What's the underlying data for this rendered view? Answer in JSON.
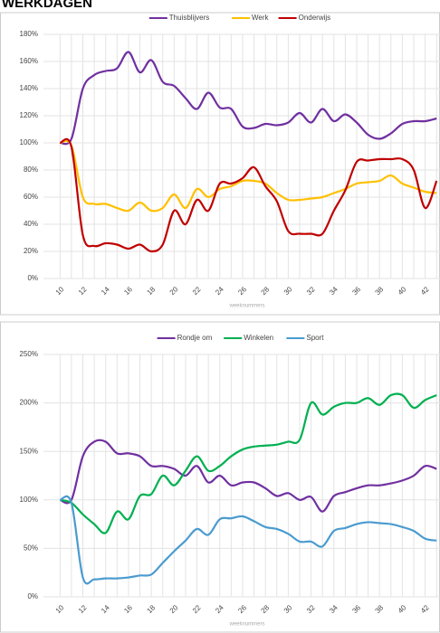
{
  "title": "WERKDAGEN",
  "chart_data": [
    {
      "type": "line",
      "x_label": "weeknummers",
      "x": [
        10,
        11,
        12,
        13,
        14,
        15,
        16,
        17,
        18,
        19,
        20,
        21,
        22,
        23,
        24,
        25,
        26,
        27,
        28,
        29,
        30,
        31,
        32,
        33,
        34,
        35,
        36,
        37,
        38,
        39,
        40,
        41,
        42,
        43
      ],
      "xlim": [
        9.5,
        43.3
      ],
      "xticks": [
        10,
        12,
        14,
        16,
        18,
        20,
        22,
        24,
        26,
        28,
        30,
        32,
        34,
        36,
        38,
        40,
        42
      ],
      "ylim": [
        0,
        180
      ],
      "yticks": [
        {
          "value": 0,
          "label": "0%"
        },
        {
          "value": 20,
          "label": "20%"
        },
        {
          "value": 40,
          "label": "40%"
        },
        {
          "value": 60,
          "label": "60%"
        },
        {
          "value": 80,
          "label": "80%"
        },
        {
          "value": 100,
          "label": "100%"
        },
        {
          "value": 120,
          "label": "120%"
        },
        {
          "value": 140,
          "label": "140%"
        },
        {
          "value": 160,
          "label": "160%"
        },
        {
          "value": 180,
          "label": "180%"
        }
      ],
      "grid": true,
      "legend": "top",
      "series": [
        {
          "name": "Thuisblijvers",
          "color": "#7030a0",
          "values": [
            100,
            103,
            140,
            150,
            153,
            155,
            167,
            152,
            161,
            145,
            142,
            133,
            125,
            137,
            126,
            125,
            112,
            111,
            114,
            113,
            115,
            122,
            115,
            125,
            116,
            121,
            115,
            106,
            103,
            107,
            114,
            116,
            116,
            118
          ]
        },
        {
          "name": "Werk",
          "color": "#ffc000",
          "values": [
            100,
            98,
            60,
            55,
            55,
            52,
            50,
            56,
            50,
            52,
            62,
            52,
            66,
            60,
            66,
            68,
            72,
            72,
            70,
            63,
            58,
            58,
            59,
            60,
            63,
            66,
            70,
            71,
            72,
            76,
            70,
            67,
            64,
            63
          ]
        },
        {
          "name": "Onderwijs",
          "color": "#c00000",
          "values": [
            100,
            97,
            32,
            24,
            26,
            25,
            22,
            25,
            20,
            25,
            50,
            40,
            58,
            50,
            70,
            70,
            74,
            82,
            68,
            57,
            35,
            33,
            33,
            33,
            50,
            65,
            86,
            87,
            88,
            88,
            88,
            80,
            52,
            72
          ]
        }
      ]
    },
    {
      "type": "line",
      "x_label": "weeknummers",
      "x": [
        10,
        11,
        12,
        13,
        14,
        15,
        16,
        17,
        18,
        19,
        20,
        21,
        22,
        23,
        24,
        25,
        26,
        27,
        28,
        29,
        30,
        31,
        32,
        33,
        34,
        35,
        36,
        37,
        38,
        39,
        40,
        41,
        42,
        43
      ],
      "xlim": [
        9.5,
        43.3
      ],
      "xticks": [
        10,
        12,
        14,
        16,
        18,
        20,
        22,
        24,
        26,
        28,
        30,
        32,
        34,
        36,
        38,
        40,
        42
      ],
      "ylim": [
        0,
        250
      ],
      "yticks": [
        {
          "value": 0,
          "label": "0%"
        },
        {
          "value": 50,
          "label": "50%"
        },
        {
          "value": 100,
          "label": "100%"
        },
        {
          "value": 150,
          "label": "150%"
        },
        {
          "value": 200,
          "label": "200%"
        },
        {
          "value": 250,
          "label": "250%"
        }
      ],
      "grid": true,
      "legend": "top",
      "series": [
        {
          "name": "Rondje om",
          "color": "#7030a0",
          "values": [
            100,
            100,
            145,
            160,
            160,
            148,
            148,
            145,
            135,
            135,
            132,
            125,
            135,
            118,
            125,
            115,
            118,
            118,
            112,
            104,
            107,
            100,
            103,
            88,
            104,
            108,
            112,
            115,
            115,
            117,
            120,
            125,
            135,
            132
          ]
        },
        {
          "name": "Winkelen",
          "color": "#00b050",
          "values": [
            100,
            97,
            85,
            75,
            66,
            88,
            80,
            104,
            106,
            125,
            115,
            130,
            145,
            130,
            135,
            145,
            152,
            155,
            156,
            157,
            160,
            162,
            200,
            188,
            196,
            200,
            200,
            205,
            198,
            208,
            208,
            195,
            203,
            208
          ]
        },
        {
          "name": "Sport",
          "color": "#4a9bd0",
          "values": [
            100,
            97,
            20,
            18,
            19,
            19,
            20,
            22,
            23,
            35,
            47,
            58,
            70,
            64,
            80,
            81,
            83,
            78,
            72,
            70,
            65,
            57,
            57,
            52,
            68,
            71,
            75,
            77,
            76,
            75,
            72,
            68,
            60,
            58
          ]
        }
      ]
    }
  ]
}
